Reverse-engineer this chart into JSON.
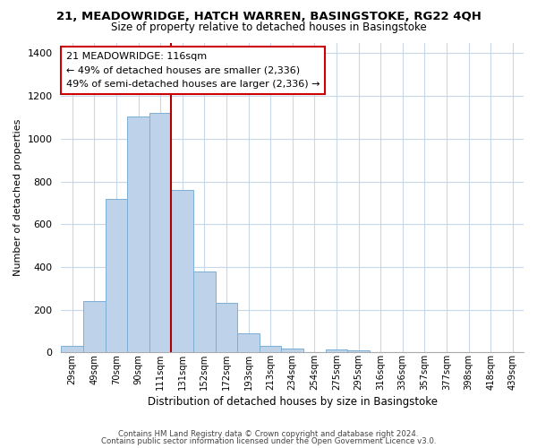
{
  "title": "21, MEADOWRIDGE, HATCH WARREN, BASINGSTOKE, RG22 4QH",
  "subtitle": "Size of property relative to detached houses in Basingstoke",
  "xlabel": "Distribution of detached houses by size in Basingstoke",
  "ylabel": "Number of detached properties",
  "bar_labels": [
    "29sqm",
    "49sqm",
    "70sqm",
    "90sqm",
    "111sqm",
    "131sqm",
    "152sqm",
    "172sqm",
    "193sqm",
    "213sqm",
    "234sqm",
    "254sqm",
    "275sqm",
    "295sqm",
    "316sqm",
    "336sqm",
    "357sqm",
    "377sqm",
    "398sqm",
    "418sqm",
    "439sqm"
  ],
  "bar_values": [
    30,
    240,
    720,
    1105,
    1120,
    760,
    380,
    230,
    90,
    30,
    20,
    0,
    15,
    10,
    0,
    0,
    0,
    0,
    0,
    0,
    0
  ],
  "bar_color": "#bed3ea",
  "bar_edge_color": "#7aafd4",
  "highlight_bar_index": 4,
  "vline_x_index": 4,
  "vline_color": "#aa0000",
  "annotation_title": "21 MEADOWRIDGE: 116sqm",
  "annotation_line1": "← 49% of detached houses are smaller (2,336)",
  "annotation_line2": "49% of semi-detached houses are larger (2,336) →",
  "annotation_box_color": "#ffffff",
  "annotation_box_edge": "#cc0000",
  "ylim": [
    0,
    1450
  ],
  "yticks": [
    0,
    200,
    400,
    600,
    800,
    1000,
    1200,
    1400
  ],
  "footer1": "Contains HM Land Registry data © Crown copyright and database right 2024.",
  "footer2": "Contains public sector information licensed under the Open Government Licence v3.0.",
  "background_color": "#ffffff",
  "grid_color": "#c8d8e8"
}
